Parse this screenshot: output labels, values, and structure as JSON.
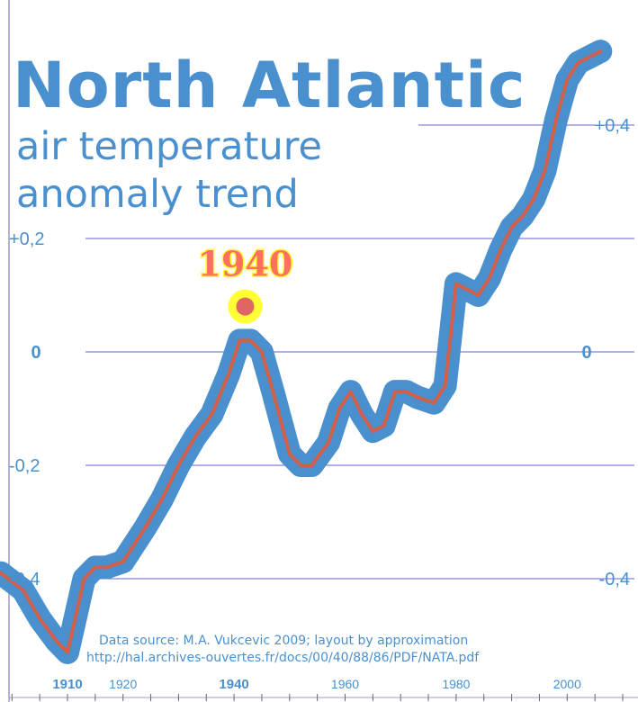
{
  "title": "North Atlantic",
  "subtitle_line1": "air temperature",
  "subtitle_line2": "anomaly trend",
  "source_line1": "Data source: M.A. Vukcevic 2009; layout by approximation",
  "source_line2": "http://hal.archives-ouvertes.fr/docs/00/40/88/86/PDF/NATA.pdf",
  "annotation": {
    "label": "1940",
    "x": 1942,
    "y": 0.08
  },
  "colors": {
    "thick_band": "#4a90cf",
    "trend_line": "#d0604a",
    "gridline": "#6666cc",
    "text": "#4a90cf",
    "annotation_fill": "#e06666",
    "annotation_glow": "#ffff33"
  },
  "chart_data": {
    "type": "line",
    "x_ticks": [
      {
        "value": 1910,
        "label": "1910",
        "bold": true
      },
      {
        "value": 1920,
        "label": "1920",
        "bold": false
      },
      {
        "value": 1940,
        "label": "1940",
        "bold": true
      },
      {
        "value": 1960,
        "label": "1960",
        "bold": false
      },
      {
        "value": 1980,
        "label": "1980",
        "bold": false
      },
      {
        "value": 2000,
        "label": "2000",
        "bold": false
      }
    ],
    "y_ticks_left": [
      {
        "value": 0.2,
        "label": "+0,2"
      },
      {
        "value": 0,
        "label": "0"
      },
      {
        "value": -0.2,
        "label": "-0,2"
      },
      {
        "value": -0.4,
        "label": "-0,4"
      }
    ],
    "y_ticks_right": [
      {
        "value": 0.4,
        "label": "+0,4"
      },
      {
        "value": 0,
        "label": "0"
      },
      {
        "value": -0.4,
        "label": "-0,4"
      }
    ],
    "gridlines_y": [
      0.4,
      0.2,
      0,
      -0.2,
      -0.4
    ],
    "xlim": [
      1895,
      2010
    ],
    "ylim": [
      -0.58,
      0.58
    ],
    "grid": true,
    "series": [
      {
        "x": [
          1896,
          1898,
          1902,
          1905,
          1908,
          1910,
          1913,
          1915,
          1917,
          1920,
          1924,
          1927,
          1930,
          1933,
          1936,
          1939,
          1941,
          1943,
          1945,
          1947,
          1950,
          1952,
          1954,
          1957,
          1959,
          1961,
          1963,
          1965,
          1967,
          1969,
          1971,
          1973,
          1976,
          1978,
          1980,
          1982,
          1984,
          1986,
          1988,
          1990,
          1992,
          1994,
          1996,
          1998,
          2000,
          2002,
          2004,
          2006
        ],
        "y": [
          -0.39,
          -0.39,
          -0.42,
          -0.47,
          -0.51,
          -0.53,
          -0.4,
          -0.38,
          -0.38,
          -0.37,
          -0.31,
          -0.26,
          -0.2,
          -0.15,
          -0.11,
          -0.04,
          0.02,
          0.02,
          0.0,
          -0.07,
          -0.18,
          -0.2,
          -0.2,
          -0.16,
          -0.1,
          -0.07,
          -0.11,
          -0.14,
          -0.13,
          -0.07,
          -0.07,
          -0.08,
          -0.09,
          -0.06,
          0.12,
          0.11,
          0.1,
          0.13,
          0.18,
          0.22,
          0.24,
          0.27,
          0.32,
          0.41,
          0.48,
          0.51,
          0.52,
          0.53
        ]
      }
    ]
  }
}
